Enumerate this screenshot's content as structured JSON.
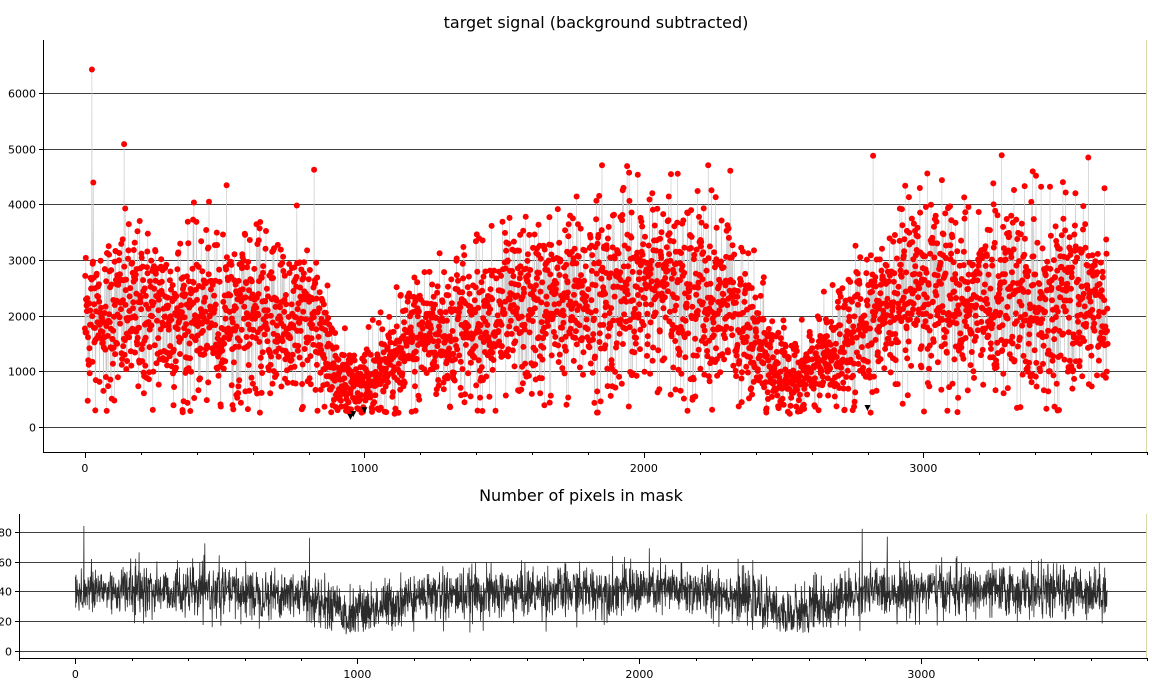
{
  "chart_data": [
    {
      "type": "scatter",
      "title": "target signal (background subtracted)",
      "xlabel": "",
      "ylabel": "",
      "xlim": [
        -150,
        3800
      ],
      "ylim": [
        -450,
        6950
      ],
      "xticks": [
        0,
        1000,
        2000,
        3000
      ],
      "xtick_labels": [
        "0",
        "1000",
        "2000",
        "3000"
      ],
      "yticks": [
        0,
        1000,
        2000,
        3000,
        4000,
        5000,
        6000
      ],
      "ytick_labels": [
        "0",
        "1000",
        "2000",
        "3000",
        "4000",
        "5000",
        "6000"
      ],
      "grid": "horizontal",
      "legend": "none",
      "n_points": 3660,
      "colors": {
        "markers": "#ff0000",
        "connector": "#c8c8c8",
        "outlier_markers": "#000000",
        "grid": "#000000"
      },
      "trend": {
        "x": [
          0,
          200,
          400,
          600,
          800,
          900,
          960,
          1050,
          1200,
          1400,
          1600,
          1800,
          2000,
          2200,
          2300,
          2400,
          2500,
          2560,
          2650,
          2800,
          3000,
          3200,
          3400,
          3600,
          3660
        ],
        "y": [
          2000,
          2050,
          2000,
          1950,
          1850,
          1000,
          650,
          900,
          1650,
          1850,
          2100,
          2300,
          2450,
          2350,
          2150,
          1500,
          850,
          800,
          1200,
          2000,
          2250,
          2300,
          2250,
          2250,
          2200
        ]
      },
      "highlights": [
        {
          "x": 25,
          "y": 6420
        },
        {
          "x": 30,
          "y": 4390
        },
        {
          "x": 140,
          "y": 5080
        },
        {
          "x": 820,
          "y": 4620
        },
        {
          "x": 2820,
          "y": 4870
        },
        {
          "x": 3280,
          "y": 4880
        },
        {
          "x": 3590,
          "y": 4840
        },
        {
          "x": 1850,
          "y": 4700
        },
        {
          "x": 2230,
          "y": 4700
        }
      ],
      "black_markers": [
        {
          "x": 950,
          "y": 180
        },
        {
          "x": 960,
          "y": 230
        },
        {
          "x": 1000,
          "y": 300
        },
        {
          "x": 2800,
          "y": 340
        }
      ]
    },
    {
      "type": "line",
      "title": "Number of pixels in mask",
      "xlabel": "",
      "ylabel": "",
      "xlim": [
        -200,
        3800
      ],
      "ylim": [
        -5,
        92
      ],
      "xticks": [
        0,
        1000,
        2000,
        3000
      ],
      "xtick_labels": [
        "0",
        "1000",
        "2000",
        "3000"
      ],
      "yticks": [
        0,
        20,
        40,
        60,
        80
      ],
      "ytick_labels": [
        "0",
        "20",
        "40",
        "60",
        "80"
      ],
      "grid": "horizontal",
      "legend": "none",
      "n_points": 3660,
      "colors": {
        "line": "#2b2b2b",
        "grid": "#000000"
      },
      "trend": {
        "x": [
          0,
          200,
          400,
          600,
          800,
          900,
          960,
          1050,
          1200,
          1400,
          1600,
          1800,
          2000,
          2200,
          2300,
          2400,
          2500,
          2560,
          2650,
          2800,
          3000,
          3200,
          3400,
          3600,
          3660
        ],
        "y": [
          40,
          41,
          40,
          39,
          38,
          30,
          24,
          28,
          36,
          38,
          39,
          40,
          41,
          40,
          39,
          34,
          26,
          25,
          31,
          40,
          41,
          40,
          40,
          40,
          40
        ]
      },
      "highlights": [
        {
          "x": 30,
          "y": 84
        },
        {
          "x": 830,
          "y": 76
        },
        {
          "x": 2790,
          "y": 82
        },
        {
          "x": 960,
          "y": 11
        },
        {
          "x": 2580,
          "y": 12
        }
      ]
    }
  ]
}
